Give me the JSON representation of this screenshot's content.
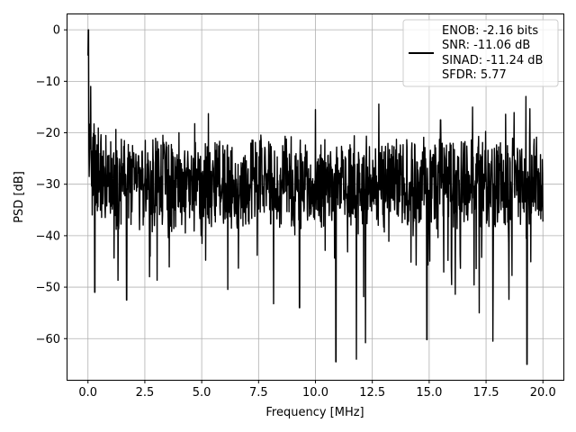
{
  "chart_data": {
    "type": "line",
    "xlabel": "Frequency [MHz]",
    "ylabel": "PSD [dB]",
    "xlim": [
      -0.9,
      20.9
    ],
    "ylim": [
      -68,
      3
    ],
    "x_ticks": [
      0.0,
      2.5,
      5.0,
      7.5,
      10.0,
      12.5,
      15.0,
      17.5,
      20.0
    ],
    "x_tick_labels": [
      "0.0",
      "2.5",
      "5.0",
      "7.5",
      "10.0",
      "12.5",
      "15.0",
      "17.5",
      "20.0"
    ],
    "y_ticks": [
      0,
      -10,
      -20,
      -30,
      -40,
      -50,
      -60
    ],
    "y_tick_labels": [
      "0",
      "−10",
      "−20",
      "−30",
      "−40",
      "−50",
      "−60"
    ],
    "grid": true,
    "legend_position": "top-right",
    "series": [
      {
        "color": "#000000",
        "description_points": [
          [
            0.0,
            -5
          ],
          [
            0.02,
            0
          ],
          [
            0.05,
            -20
          ],
          [
            0.1,
            -25
          ],
          [
            0.2,
            -12
          ],
          [
            0.3,
            -30
          ],
          [
            0.5,
            -38
          ],
          [
            1.0,
            -30
          ],
          [
            2.5,
            -29
          ],
          [
            5.0,
            -30
          ],
          [
            7.5,
            -29
          ],
          [
            10.0,
            -30
          ],
          [
            12.5,
            -30
          ],
          [
            15.0,
            -30
          ],
          [
            17.5,
            -30
          ],
          [
            20.0,
            -30
          ]
        ],
        "notable_peaks": [
          [
            0.02,
            0
          ],
          [
            0.12,
            -11
          ],
          [
            10.0,
            -15.5
          ],
          [
            15.5,
            -17.5
          ]
        ],
        "notable_dips": [
          [
            0.3,
            -51
          ],
          [
            1.7,
            -52.5
          ],
          [
            9.3,
            -54
          ],
          [
            10.9,
            -64.5
          ],
          [
            11.8,
            -64
          ],
          [
            12.2,
            -60.8
          ],
          [
            14.9,
            -60.2
          ],
          [
            17.2,
            -55
          ],
          [
            17.8,
            -60.5
          ],
          [
            19.3,
            -65
          ]
        ]
      }
    ],
    "legend": {
      "entries": [
        "ENOB: -2.16 bits",
        "SNR: -11.06 dB",
        "SINAD: -11.24 dB",
        "SFDR: 5.77"
      ]
    }
  }
}
